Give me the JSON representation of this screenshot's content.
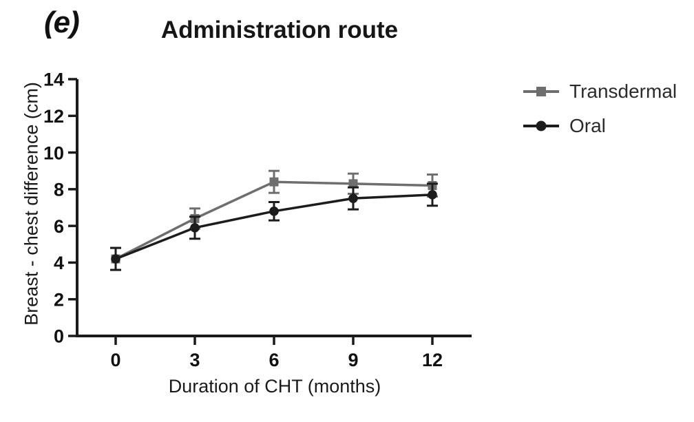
{
  "figure": {
    "background_color": "#ffffff",
    "panel_label": "(e)"
  },
  "chart_data": {
    "type": "line",
    "title": "Administration route",
    "xlabel": "Duration of CHT (months)",
    "ylabel": "Breast - chest difference (cm)",
    "x": [
      0,
      3,
      6,
      9,
      12
    ],
    "xticks": [
      0,
      3,
      6,
      9,
      12
    ],
    "yticks": [
      0,
      2,
      4,
      6,
      8,
      10,
      12,
      14
    ],
    "ylim": [
      0,
      14
    ],
    "grid": false,
    "error_bars": true,
    "legend_position": "right",
    "axis_color": "#1a1a1a",
    "tick_label_color": "#111111",
    "series": [
      {
        "name": "Transdermal",
        "marker": "square",
        "color": "#6e6e6e",
        "values": [
          4.2,
          6.4,
          8.4,
          8.3,
          8.2
        ],
        "sem": [
          0.6,
          0.55,
          0.6,
          0.55,
          0.6
        ]
      },
      {
        "name": "Oral",
        "marker": "circle",
        "color": "#1c1c1c",
        "values": [
          4.2,
          5.9,
          6.8,
          7.5,
          7.7
        ],
        "sem": [
          0.6,
          0.6,
          0.5,
          0.6,
          0.6
        ]
      }
    ]
  }
}
